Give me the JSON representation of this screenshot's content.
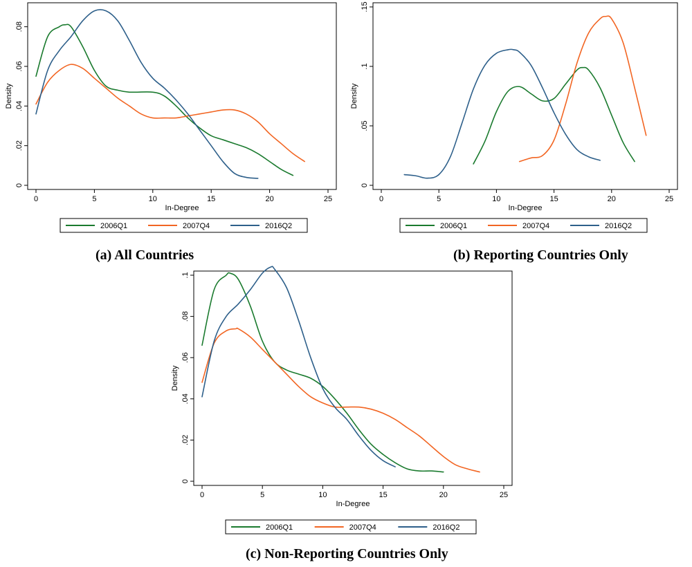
{
  "chart_data": [
    {
      "id": "a",
      "type": "line",
      "caption": "(a) All Countries",
      "xlabel": "In-Degree",
      "ylabel": "Density",
      "xlim": [
        0,
        25
      ],
      "ylim": [
        0,
        0.09
      ],
      "xticks": [
        "0",
        "5",
        "10",
        "15",
        "20",
        "25"
      ],
      "yticks": [
        "0",
        ".02",
        ".04",
        ".06",
        ".08"
      ],
      "legend_position": "bottom",
      "series": [
        {
          "name": "2006Q1",
          "color": "#1a7a2e",
          "x": [
            0,
            1,
            2,
            2.5,
            3,
            4,
            5,
            6,
            7,
            8,
            10,
            11,
            12,
            13,
            14,
            15,
            16,
            17,
            18,
            19,
            20,
            21,
            22
          ],
          "y": [
            0.055,
            0.075,
            0.08,
            0.081,
            0.08,
            0.07,
            0.058,
            0.05,
            0.048,
            0.047,
            0.047,
            0.045,
            0.04,
            0.034,
            0.029,
            0.025,
            0.023,
            0.021,
            0.019,
            0.016,
            0.012,
            0.008,
            0.005
          ]
        },
        {
          "name": "2007Q4",
          "color": "#f26522",
          "x": [
            0,
            1,
            2,
            3,
            4,
            5,
            6,
            7,
            8,
            9,
            10,
            11,
            12,
            13,
            14,
            15,
            16,
            17,
            18,
            19,
            20,
            21,
            22,
            23
          ],
          "y": [
            0.041,
            0.052,
            0.058,
            0.061,
            0.059,
            0.054,
            0.049,
            0.044,
            0.04,
            0.036,
            0.034,
            0.034,
            0.034,
            0.035,
            0.036,
            0.037,
            0.038,
            0.038,
            0.036,
            0.032,
            0.026,
            0.021,
            0.016,
            0.012
          ]
        },
        {
          "name": "2016Q2",
          "color": "#2d5f8a",
          "x": [
            0,
            1,
            2,
            3,
            4,
            5,
            6,
            7,
            8,
            9,
            10,
            11,
            12,
            13,
            14,
            15,
            16,
            17,
            18,
            19
          ],
          "y": [
            0.036,
            0.058,
            0.068,
            0.075,
            0.083,
            0.088,
            0.088,
            0.083,
            0.073,
            0.062,
            0.054,
            0.049,
            0.043,
            0.036,
            0.028,
            0.02,
            0.012,
            0.006,
            0.004,
            0.0035
          ]
        }
      ]
    },
    {
      "id": "b",
      "type": "line",
      "caption": "(b) Reporting Countries Only",
      "xlabel": "In-Degree",
      "ylabel": "Density",
      "xlim": [
        0,
        25
      ],
      "ylim": [
        0,
        0.15
      ],
      "xticks": [
        "0",
        "5",
        "10",
        "15",
        "20",
        "25"
      ],
      "yticks": [
        "0",
        ".05",
        ".1",
        ".15"
      ],
      "legend_position": "bottom",
      "series": [
        {
          "name": "2006Q1",
          "color": "#1a7a2e",
          "x": [
            8,
            9,
            10,
            11,
            12,
            13,
            14,
            15,
            16,
            17,
            17.5,
            18,
            19,
            20,
            21,
            22
          ],
          "y": [
            0.018,
            0.037,
            0.062,
            0.079,
            0.083,
            0.077,
            0.071,
            0.073,
            0.085,
            0.097,
            0.099,
            0.097,
            0.082,
            0.059,
            0.036,
            0.02
          ]
        },
        {
          "name": "2007Q4",
          "color": "#f26522",
          "x": [
            12,
            13,
            14,
            15,
            16,
            17,
            18,
            19,
            19.5,
            20,
            21,
            22,
            23
          ],
          "y": [
            0.02,
            0.023,
            0.025,
            0.038,
            0.068,
            0.103,
            0.128,
            0.14,
            0.142,
            0.14,
            0.12,
            0.082,
            0.042
          ]
        },
        {
          "name": "2016Q2",
          "color": "#2d5f8a",
          "x": [
            2,
            3,
            4,
            5,
            6,
            7,
            8,
            9,
            10,
            11,
            11.5,
            12,
            13,
            14,
            15,
            16,
            17,
            18,
            19
          ],
          "y": [
            0.009,
            0.008,
            0.006,
            0.009,
            0.024,
            0.052,
            0.081,
            0.101,
            0.111,
            0.114,
            0.114,
            0.112,
            0.101,
            0.082,
            0.061,
            0.043,
            0.03,
            0.024,
            0.021
          ]
        }
      ]
    },
    {
      "id": "c",
      "type": "line",
      "caption": "(c) Non-Reporting Countries Only",
      "xlabel": "In-Degree",
      "ylabel": "Density",
      "xlim": [
        0,
        25
      ],
      "ylim": [
        0,
        0.1
      ],
      "xticks": [
        "0",
        "5",
        "10",
        "15",
        "20",
        "25"
      ],
      "yticks": [
        "0",
        ".02",
        ".04",
        ".06",
        ".08",
        ".1"
      ],
      "legend_position": "bottom",
      "series": [
        {
          "name": "2006Q1",
          "color": "#1a7a2e",
          "x": [
            0,
            1,
            2,
            2.3,
            3,
            4,
            5,
            6,
            7,
            8,
            9,
            10,
            11,
            12,
            13,
            14,
            15,
            16,
            17,
            18,
            19,
            20
          ],
          "y": [
            0.066,
            0.093,
            0.1,
            0.101,
            0.098,
            0.085,
            0.068,
            0.058,
            0.054,
            0.052,
            0.05,
            0.046,
            0.04,
            0.033,
            0.025,
            0.018,
            0.013,
            0.009,
            0.006,
            0.005,
            0.005,
            0.0045
          ]
        },
        {
          "name": "2007Q4",
          "color": "#f26522",
          "x": [
            0,
            1,
            2,
            2.8,
            3,
            4,
            5,
            6,
            7,
            8,
            9,
            10,
            11,
            12,
            13,
            14,
            15,
            16,
            17,
            18,
            19,
            20,
            21,
            22,
            23
          ],
          "y": [
            0.048,
            0.067,
            0.073,
            0.074,
            0.074,
            0.07,
            0.064,
            0.058,
            0.052,
            0.046,
            0.041,
            0.038,
            0.036,
            0.036,
            0.036,
            0.035,
            0.033,
            0.03,
            0.026,
            0.022,
            0.017,
            0.012,
            0.008,
            0.006,
            0.0045
          ]
        },
        {
          "name": "2016Q2",
          "color": "#2d5f8a",
          "x": [
            0,
            1,
            2,
            3,
            4,
            5,
            5.7,
            6,
            7,
            8,
            9,
            10,
            11,
            12,
            13,
            14,
            15,
            16
          ],
          "y": [
            0.041,
            0.068,
            0.08,
            0.086,
            0.093,
            0.101,
            0.104,
            0.103,
            0.094,
            0.078,
            0.06,
            0.045,
            0.036,
            0.03,
            0.022,
            0.015,
            0.01,
            0.007
          ]
        }
      ]
    }
  ]
}
